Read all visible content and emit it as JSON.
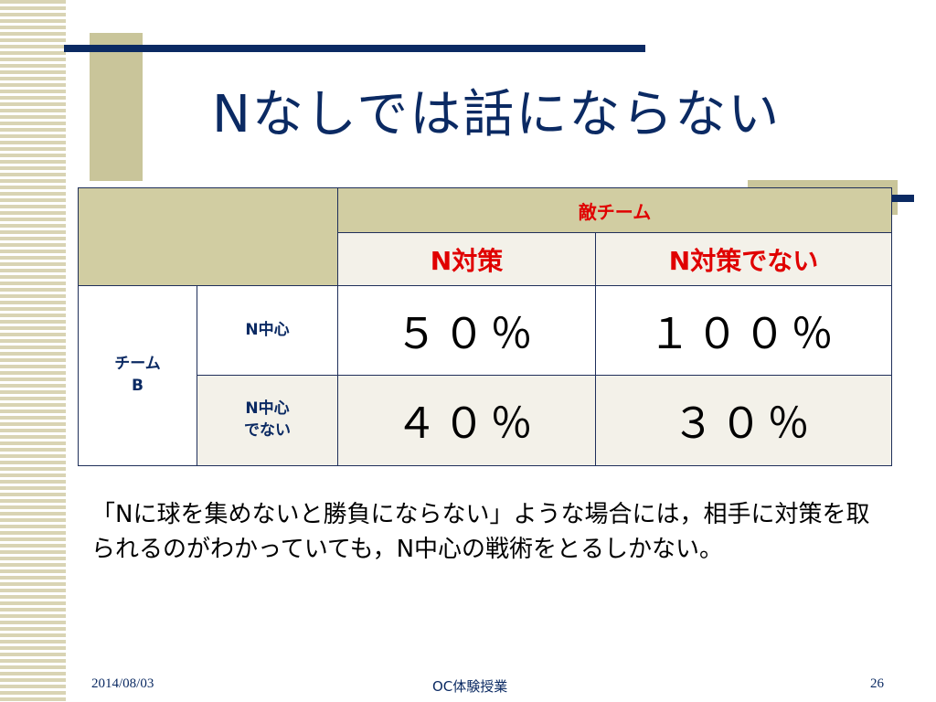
{
  "slide": {
    "title": "Nなしでは話にならない"
  },
  "table": {
    "enemy_header": "敵チーム",
    "col_headers": [
      "N対策",
      "N対策でない"
    ],
    "team_label_line1": "チーム",
    "team_label_line2": "B",
    "rows": [
      {
        "label_line1": "N中心",
        "label_line2": "",
        "values": [
          "５０％",
          "１００％"
        ]
      },
      {
        "label_line1": "N中心",
        "label_line2": "でない",
        "values": [
          "４０％",
          "３０％"
        ]
      }
    ]
  },
  "explanation": {
    "text": "「Nに球を集めないと勝負にならない」ような場合には，相手に対策を取られるのがわかっていても，N中心の戦術をとるしかない。"
  },
  "footer": {
    "date": "2014/08/03",
    "course": "OC体験授業",
    "page": "26"
  },
  "colors": {
    "navy": "#0b2a63",
    "olive": "#c9c59a",
    "header_red": "#e00000"
  }
}
